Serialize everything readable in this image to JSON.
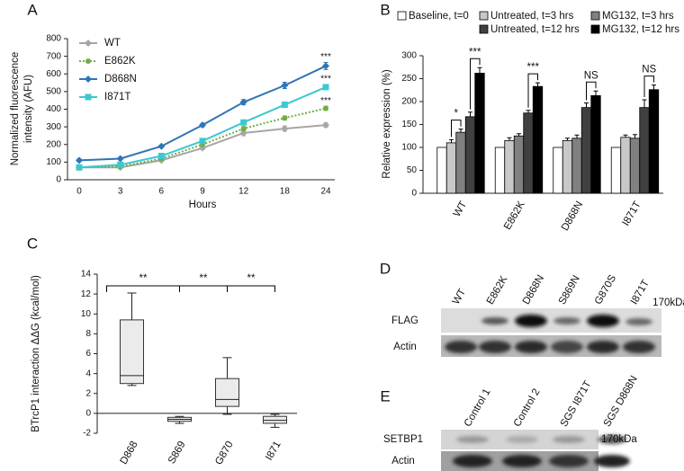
{
  "chart_data": [
    {
      "type": "line",
      "panel": "A",
      "x_label": "Hours",
      "y_label": "Normalized fluorescence intensity (AFU)",
      "categories": [
        "0",
        "3",
        "6",
        "9",
        "12",
        "18",
        "24"
      ],
      "ylim": [
        0,
        800
      ],
      "yticks": [
        0,
        100,
        200,
        300,
        400,
        500,
        600,
        700,
        800
      ],
      "series": [
        {
          "name": "WT",
          "color": "#a6a6a6",
          "marker": "diamond",
          "values": [
            70,
            70,
            110,
            180,
            265,
            290,
            310
          ],
          "errors": [
            5,
            5,
            5,
            8,
            15,
            15,
            12
          ]
        },
        {
          "name": "E862K",
          "color": "#70ad47",
          "marker": "circle",
          "line_style": "dotted",
          "values": [
            70,
            75,
            120,
            200,
            290,
            350,
            405
          ],
          "errors": [
            5,
            5,
            5,
            8,
            12,
            12,
            12
          ],
          "annotation": "***"
        },
        {
          "name": "D868N",
          "color": "#2e75b6",
          "marker": "diamond",
          "values": [
            110,
            120,
            190,
            310,
            440,
            535,
            645
          ],
          "errors": [
            8,
            5,
            5,
            10,
            15,
            18,
            20
          ],
          "annotation": "***"
        },
        {
          "name": "I871T",
          "color": "#3cc8d0",
          "marker": "square",
          "values": [
            70,
            85,
            135,
            220,
            325,
            425,
            525
          ],
          "errors": [
            5,
            5,
            5,
            8,
            10,
            15,
            15
          ],
          "annotation": "***"
        }
      ]
    },
    {
      "type": "bar",
      "panel": "B",
      "y_label": "Relative expression (%)",
      "categories": [
        "WT",
        "E862K",
        "D868N",
        "I871T"
      ],
      "ylim": [
        0,
        300
      ],
      "yticks": [
        0,
        50,
        100,
        150,
        200,
        250,
        300
      ],
      "series": [
        {
          "name": "Baseline, t=0",
          "color": "#ffffff",
          "values": [
            100,
            100,
            100,
            100
          ]
        },
        {
          "name": "Untreated, t=3 hrs",
          "color": "#c8c8c8",
          "values": [
            110,
            115,
            115,
            122
          ],
          "errors": [
            7,
            6,
            5,
            5
          ]
        },
        {
          "name": "MG132, t=3 hrs",
          "color": "#808080",
          "values": [
            133,
            125,
            120,
            120
          ],
          "errors": [
            7,
            5,
            7,
            8
          ]
        },
        {
          "name": "Untreated, t=12 hrs",
          "color": "#404040",
          "values": [
            167,
            175,
            187,
            187
          ],
          "errors": [
            10,
            6,
            10,
            17
          ]
        },
        {
          "name": "MG132, t=12 hrs",
          "color": "#000000",
          "values": [
            262,
            233,
            213,
            226
          ],
          "errors": [
            12,
            8,
            10,
            10
          ]
        }
      ],
      "annotations": [
        {
          "text": "*",
          "category": "WT",
          "between": [
            "Untreated, t=3 hrs",
            "MG132, t=3 hrs"
          ]
        },
        {
          "text": "***",
          "category": "WT",
          "between": [
            "Untreated, t=12 hrs",
            "MG132, t=12 hrs"
          ]
        },
        {
          "text": "***",
          "category": "E862K",
          "between": [
            "Untreated, t=12 hrs",
            "MG132, t=12 hrs"
          ]
        },
        {
          "text": "NS",
          "category": "D868N",
          "between": [
            "Untreated, t=12 hrs",
            "MG132, t=12 hrs"
          ]
        },
        {
          "text": "NS",
          "category": "I871T",
          "between": [
            "Untreated, t=12 hrs",
            "MG132, t=12 hrs"
          ]
        }
      ]
    },
    {
      "type": "box",
      "panel": "C",
      "y_label": "BTrcP1 interaction ΔΔG (kcal/mol)",
      "categories": [
        "D868",
        "S869",
        "G870",
        "I871"
      ],
      "ylim": [
        -2,
        14
      ],
      "yticks": [
        -2,
        0,
        2,
        4,
        6,
        8,
        10,
        12,
        14
      ],
      "boxes": [
        {
          "min": 2.8,
          "q1": 3,
          "median": 3.8,
          "q3": 9.4,
          "max": 12.1
        },
        {
          "min": -1,
          "q1": -0.8,
          "median": -0.6,
          "q3": -0.4,
          "max": -0.3
        },
        {
          "min": -0.1,
          "q1": 0.7,
          "median": 1.4,
          "q3": 3.5,
          "max": 5.6
        },
        {
          "min": -1.4,
          "q1": -1,
          "median": -0.7,
          "q3": -0.3,
          "max": -0.1
        }
      ],
      "annotations": [
        {
          "text": "**",
          "between": [
            "D868",
            "S869"
          ]
        },
        {
          "text": "**",
          "between": [
            "S869",
            "G870"
          ]
        },
        {
          "text": "**",
          "between": [
            "G870",
            "I871"
          ]
        }
      ]
    }
  ],
  "blots": [
    {
      "panel": "D",
      "lanes": [
        "WT",
        "E862K",
        "D868N",
        "S869N",
        "G870S",
        "I871T"
      ],
      "rows": [
        "FLAG",
        "Actin"
      ],
      "size": "170kDa"
    },
    {
      "panel": "E",
      "lanes": [
        "Control 1",
        "Control 2",
        "SGS I871T",
        "SGS D868N"
      ],
      "rows": [
        "SETBP1",
        "Actin"
      ],
      "size": "170kDa"
    }
  ]
}
